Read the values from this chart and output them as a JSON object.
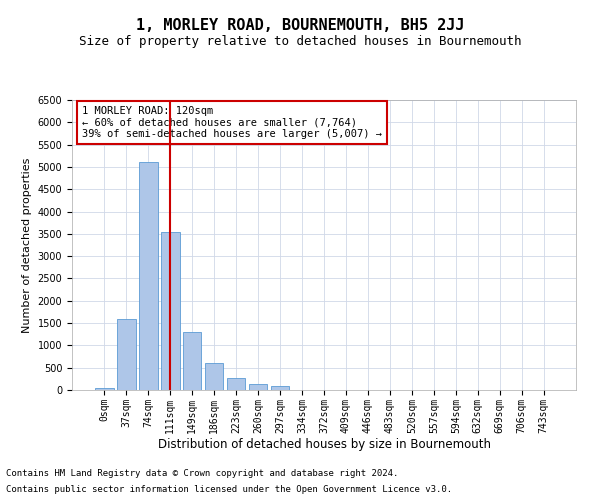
{
  "title": "1, MORLEY ROAD, BOURNEMOUTH, BH5 2JJ",
  "subtitle": "Size of property relative to detached houses in Bournemouth",
  "xlabel": "Distribution of detached houses by size in Bournemouth",
  "ylabel": "Number of detached properties",
  "categories": [
    "0sqm",
    "37sqm",
    "74sqm",
    "111sqm",
    "149sqm",
    "186sqm",
    "223sqm",
    "260sqm",
    "297sqm",
    "334sqm",
    "372sqm",
    "409sqm",
    "446sqm",
    "483sqm",
    "520sqm",
    "557sqm",
    "594sqm",
    "632sqm",
    "669sqm",
    "706sqm",
    "743sqm"
  ],
  "values": [
    50,
    1600,
    5100,
    3550,
    1300,
    600,
    270,
    130,
    90,
    0,
    0,
    0,
    0,
    0,
    0,
    0,
    0,
    0,
    0,
    0,
    0
  ],
  "bar_color": "#aec6e8",
  "bar_edge_color": "#5b9bd5",
  "vline_x": 3.0,
  "vline_color": "#cc0000",
  "annotation_text": "1 MORLEY ROAD: 120sqm\n← 60% of detached houses are smaller (7,764)\n39% of semi-detached houses are larger (5,007) →",
  "annotation_box_color": "white",
  "annotation_box_edgecolor": "#cc0000",
  "ylim": [
    0,
    6500
  ],
  "yticks": [
    0,
    500,
    1000,
    1500,
    2000,
    2500,
    3000,
    3500,
    4000,
    4500,
    5000,
    5500,
    6000,
    6500
  ],
  "footer_line1": "Contains HM Land Registry data © Crown copyright and database right 2024.",
  "footer_line2": "Contains public sector information licensed under the Open Government Licence v3.0.",
  "bg_color": "#ffffff",
  "grid_color": "#d0d8e8",
  "title_fontsize": 11,
  "subtitle_fontsize": 9,
  "xlabel_fontsize": 8.5,
  "ylabel_fontsize": 8,
  "tick_fontsize": 7,
  "annotation_fontsize": 7.5,
  "footer_fontsize": 6.5
}
